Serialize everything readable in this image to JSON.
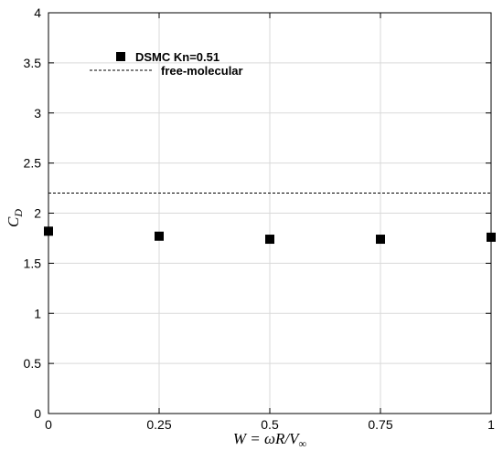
{
  "chart_data": {
    "type": "scatter",
    "xlabel": "W = ωR/V∞",
    "ylabel": "C_D",
    "xlim": [
      0,
      1
    ],
    "ylim": [
      0,
      4
    ],
    "x_ticks": [
      "0",
      "0.25",
      "0.5",
      "0.75",
      "1"
    ],
    "y_ticks": [
      "0",
      "0.5",
      "1",
      "1.5",
      "2",
      "2.5",
      "3",
      "3.5",
      "4"
    ],
    "grid": true,
    "legend_position": "top-left",
    "series": [
      {
        "name": "DSMC Kn=0.51",
        "marker": "square",
        "color": "#000000",
        "x": [
          0,
          0.25,
          0.5,
          0.75,
          1
        ],
        "y": [
          1.82,
          1.77,
          1.74,
          1.74,
          1.76
        ]
      },
      {
        "name": "free-molecular",
        "style": "dashed-line",
        "color": "#000000",
        "x": [
          0,
          1
        ],
        "y": [
          2.2,
          2.2
        ]
      }
    ]
  }
}
